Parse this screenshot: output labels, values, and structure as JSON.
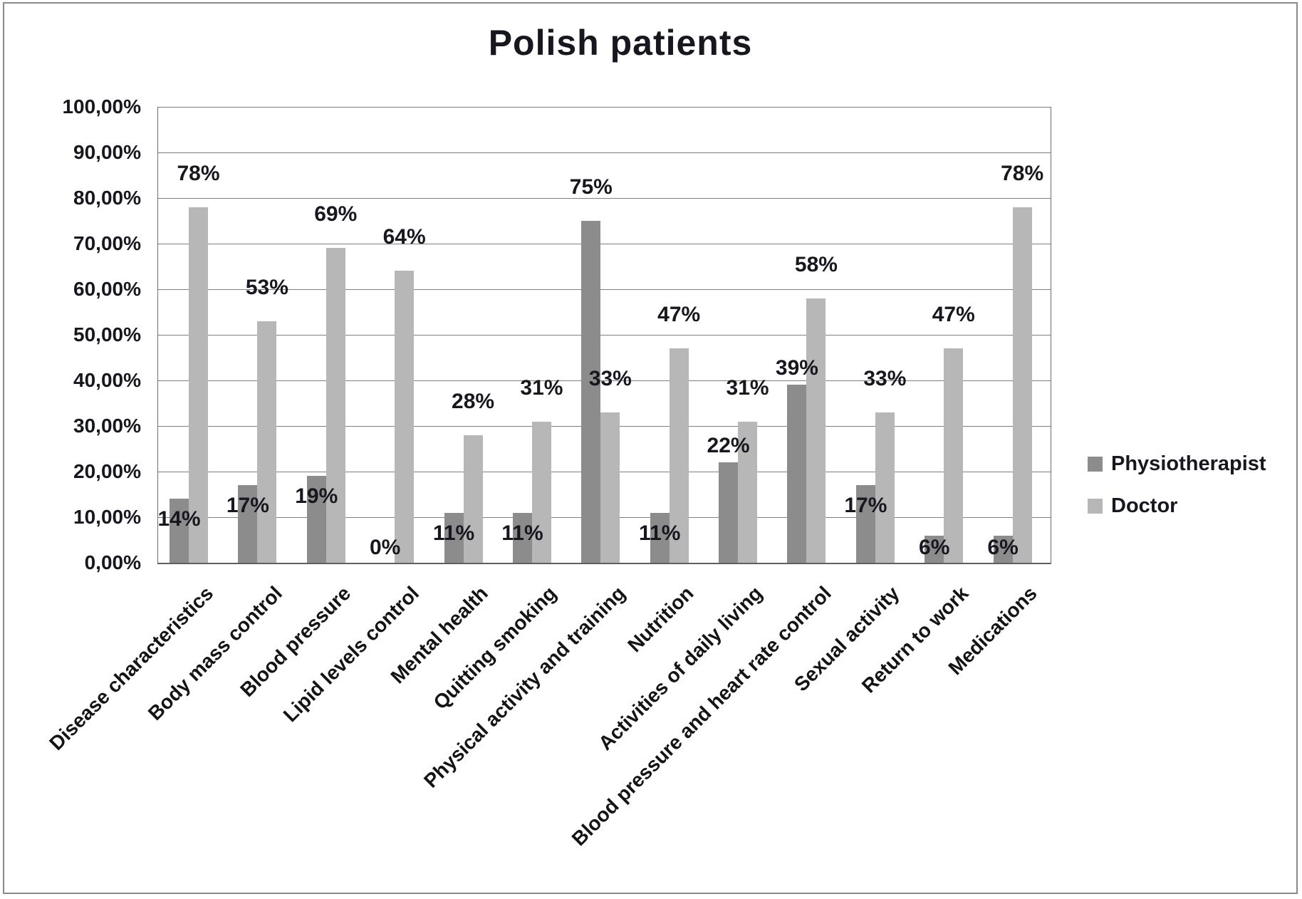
{
  "chart_data": {
    "type": "bar",
    "title": "Polish patients",
    "categories": [
      "Disease characteristics",
      "Body mass control",
      "Blood pressure",
      "Lipid levels control",
      "Mental health",
      "Quitting smoking",
      "Physical activity and training",
      "Nutrition",
      "Activities of daily living",
      "Blood pressure and heart rate control",
      "Sexual activity",
      "Return to work",
      "Medications"
    ],
    "series": [
      {
        "name": "Physiotherapist",
        "color": "#8c8c8c",
        "values": [
          14,
          17,
          19,
          0,
          11,
          11,
          75,
          11,
          22,
          39,
          17,
          6,
          6
        ],
        "data_labels": [
          "14%",
          "17%",
          "19%",
          "0%",
          "11%",
          "11%",
          "75%",
          "11%",
          "22%",
          "39%",
          "17%",
          "6%",
          "6%"
        ]
      },
      {
        "name": "Doctor",
        "color": "#b7b7b7",
        "values": [
          78,
          53,
          69,
          64,
          28,
          31,
          33,
          47,
          31,
          58,
          33,
          47,
          78
        ],
        "data_labels": [
          "78%",
          "53%",
          "69%",
          "64%",
          "28%",
          "31%",
          "33%",
          "47%",
          "31%",
          "58%",
          "33%",
          "47%",
          "78%"
        ]
      }
    ],
    "y_axis": {
      "min": 0,
      "max": 100,
      "step": 10,
      "ticks": [
        "0,00%",
        "10,00%",
        "20,00%",
        "30,00%",
        "40,00%",
        "50,00%",
        "60,00%",
        "70,00%",
        "80,00%",
        "90,00%",
        "100,00%"
      ]
    },
    "legend": {
      "position": "right",
      "entries": [
        "Physiotherapist",
        "Doctor"
      ]
    },
    "grid": true,
    "colors": {
      "gridline": "#7e7e7e",
      "axis": "#5f5f5f",
      "text": "#17171f",
      "frame_border": "#8a8a8a",
      "background": "#ffffff"
    }
  }
}
